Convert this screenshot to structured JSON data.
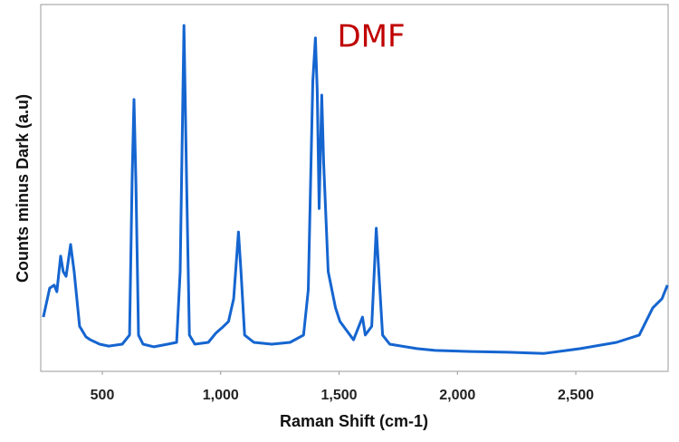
{
  "chart_data": {
    "type": "line",
    "annotation": {
      "text": "DMF",
      "color": "#c00000"
    },
    "x_label": "Raman Shift (cm-1)",
    "y_label": "Counts minus Dark (a.u)",
    "color": "#1565d0",
    "x": [
      251,
      278,
      297,
      308,
      324,
      335,
      347,
      366,
      381,
      404,
      431,
      450,
      489,
      527,
      584,
      615,
      626,
      634,
      642,
      653,
      672,
      718,
      776,
      814,
      829,
      845,
      856,
      868,
      891,
      948,
      979,
      1006,
      1033,
      1055,
      1075,
      1086,
      1101,
      1140,
      1216,
      1293,
      1350,
      1370,
      1389,
      1400,
      1408,
      1416,
      1427,
      1435,
      1454,
      1485,
      1504,
      1561,
      1599,
      1611,
      1638,
      1657,
      1668,
      1684,
      1714,
      1829,
      1906,
      2059,
      2212,
      2366,
      2519,
      2672,
      2768,
      2825,
      2864,
      2887
    ],
    "values": [
      14.8,
      22.7,
      23.5,
      21.7,
      31.4,
      27.2,
      25.9,
      34.6,
      27.2,
      12.3,
      9.4,
      8.6,
      7.4,
      6.9,
      7.4,
      9.9,
      51.9,
      74.1,
      51.9,
      9.9,
      7.4,
      6.7,
      7.4,
      7.9,
      27.2,
      94.3,
      51.9,
      9.9,
      7.4,
      7.9,
      10.4,
      11.9,
      13.6,
      19.8,
      38.0,
      27.2,
      9.9,
      7.9,
      7.4,
      7.9,
      9.9,
      22.2,
      79.0,
      90.9,
      76.5,
      44.4,
      75.3,
      56.8,
      27.2,
      17.3,
      13.6,
      8.6,
      14.8,
      9.9,
      12.3,
      39.0,
      27.2,
      9.9,
      7.4,
      6.2,
      5.7,
      5.4,
      5.2,
      4.9,
      6.2,
      7.9,
      9.9,
      17.3,
      19.8,
      23.5
    ],
    "xlim": [
      240,
      2890
    ],
    "ylim": [
      0,
      100
    ],
    "xticks": [
      500,
      {
        "value": 1000,
        "label": "1,000"
      },
      {
        "value": 1500,
        "label": "1,500"
      },
      {
        "value": 2000,
        "label": "2,000"
      },
      {
        "value": 2500,
        "label": "2,500"
      }
    ],
    "grid": false
  }
}
